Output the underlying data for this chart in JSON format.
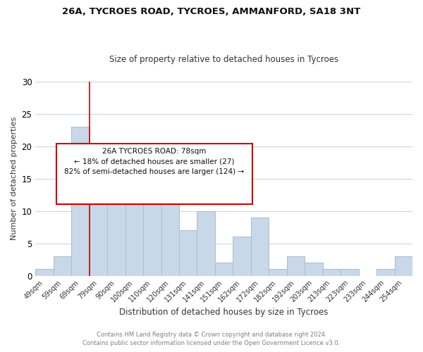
{
  "title1": "26A, TYCROES ROAD, TYCROES, AMMANFORD, SA18 3NT",
  "title2": "Size of property relative to detached houses in Tycroes",
  "xlabel": "Distribution of detached houses by size in Tycroes",
  "ylabel": "Number of detached properties",
  "footer1": "Contains HM Land Registry data © Crown copyright and database right 2024.",
  "footer2": "Contains public sector information licensed under the Open Government Licence v3.0.",
  "bar_labels": [
    "49sqm",
    "59sqm",
    "69sqm",
    "79sqm",
    "90sqm",
    "100sqm",
    "110sqm",
    "120sqm",
    "131sqm",
    "141sqm",
    "151sqm",
    "162sqm",
    "172sqm",
    "182sqm",
    "192sqm",
    "203sqm",
    "213sqm",
    "223sqm",
    "233sqm",
    "244sqm",
    "254sqm"
  ],
  "bar_values": [
    1,
    3,
    23,
    12,
    18,
    18,
    16,
    14,
    7,
    10,
    2,
    6,
    9,
    1,
    3,
    2,
    1,
    1,
    0,
    1,
    3
  ],
  "bar_color": "#c8d8e8",
  "bar_edgecolor": "#a8bece",
  "ylim": [
    0,
    30
  ],
  "yticks": [
    0,
    5,
    10,
    15,
    20,
    25,
    30
  ],
  "annotation_line1": "26A TYCROES ROAD: 78sqm",
  "annotation_line2": "← 18% of detached houses are smaller (27)",
  "annotation_line3": "82% of semi-detached houses are larger (124) →",
  "annotation_box_color": "#cc0000",
  "vline_color": "#cc0000",
  "bg_color": "#ffffff",
  "plot_bg_color": "#ffffff",
  "grid_color": "#c8d8e8",
  "footer_color": "#808080"
}
